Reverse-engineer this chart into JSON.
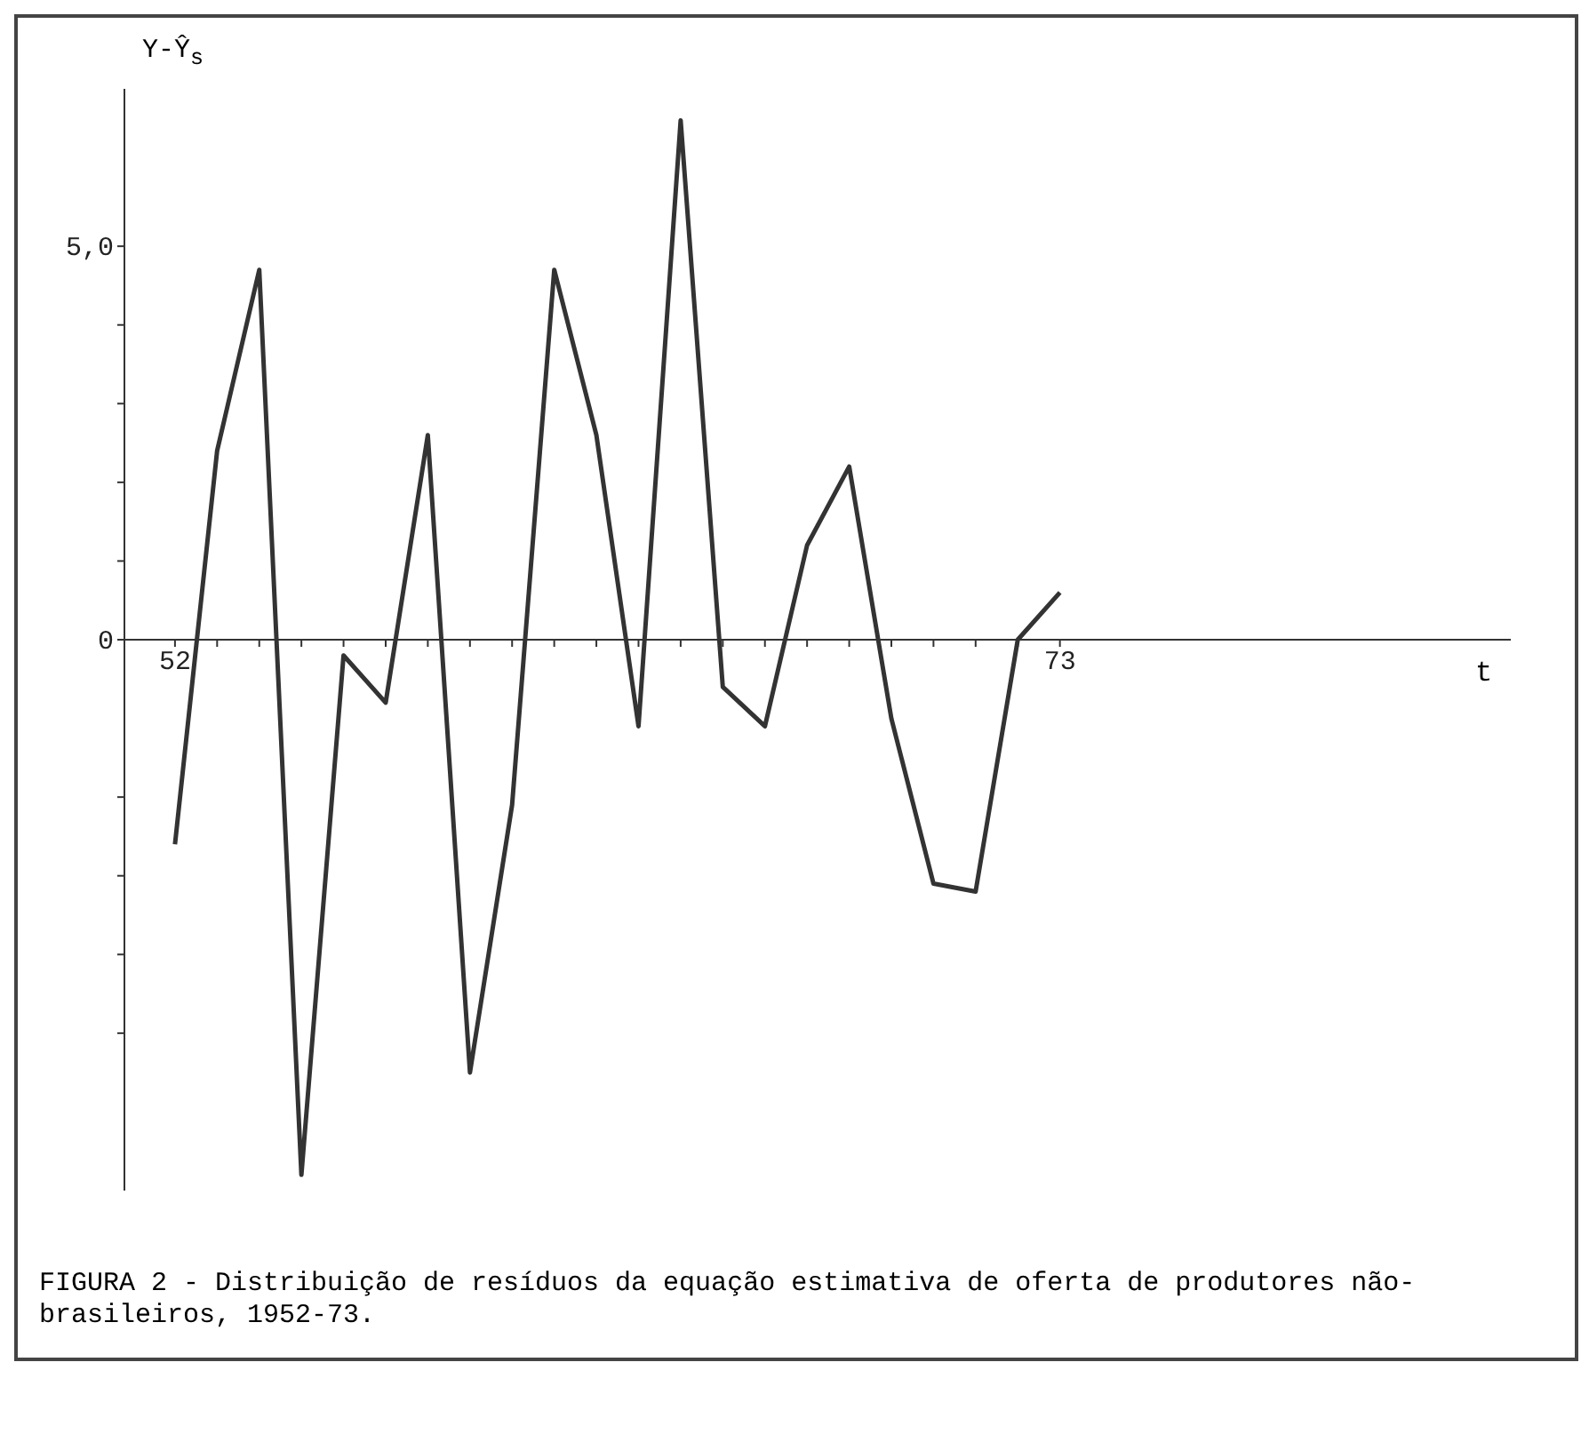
{
  "chart_data": {
    "type": "line",
    "title": "FIGURA 2 - Distribuição de resíduos da equação estimativa de oferta de produtores não-brasileiros, 1952-73.",
    "xlabel": "t",
    "ylabel": "Y-Ŷ$_{s}$",
    "x": [
      52,
      53,
      54,
      55,
      56,
      57,
      58,
      59,
      60,
      61,
      62,
      63,
      64,
      65,
      66,
      67,
      68,
      69,
      70,
      71,
      72,
      73
    ],
    "series": [
      {
        "color": "#333333",
        "values": [
          -2.6,
          2.4,
          4.7,
          -6.8,
          -0.2,
          -0.8,
          2.6,
          -5.5,
          -2.1,
          4.7,
          2.6,
          -1.1,
          6.6,
          -0.6,
          -1.1,
          1.2,
          2.2,
          -1.0,
          -3.1,
          -3.2,
          0.0,
          0.6
        ]
      }
    ],
    "xlim": [
      50.8,
      83.7
    ],
    "ylim": [
      -7,
      7
    ],
    "xticks": [
      52,
      {
        "value": 53,
        "label": null
      },
      {
        "value": 54,
        "label": null
      },
      {
        "value": 55,
        "label": null
      },
      {
        "value": 56,
        "label": null
      },
      {
        "value": 57,
        "label": null
      },
      {
        "value": 58,
        "label": null
      },
      {
        "value": 59,
        "label": null
      },
      {
        "value": 60,
        "label": null
      },
      {
        "value": 61,
        "label": null
      },
      {
        "value": 62,
        "label": null
      },
      {
        "value": 63,
        "label": null
      },
      {
        "value": 64,
        "label": null
      },
      {
        "value": 65,
        "label": null
      },
      {
        "value": 66,
        "label": null
      },
      {
        "value": 67,
        "label": null
      },
      {
        "value": 68,
        "label": null
      },
      {
        "value": 69,
        "label": null
      },
      {
        "value": 70,
        "label": null
      },
      {
        "value": 71,
        "label": null
      },
      {
        "value": 72,
        "label": null
      },
      73
    ],
    "yticks": [
      {
        "value": -5,
        "label": null
      },
      {
        "value": -4,
        "label": null
      },
      {
        "value": -3,
        "label": null
      },
      {
        "value": -2,
        "label": null
      },
      0,
      {
        "value": 1,
        "label": null
      },
      {
        "value": 2,
        "label": null
      },
      {
        "value": 3,
        "label": null
      },
      {
        "value": 4,
        "label": null
      },
      {
        "value": 5,
        "label": "5,0"
      }
    ],
    "grid": false,
    "legend": false,
    "marker": "none",
    "line_style": "solid"
  }
}
